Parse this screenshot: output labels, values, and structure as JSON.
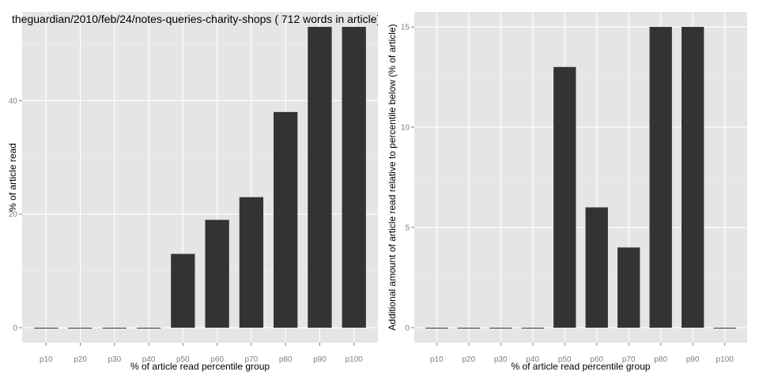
{
  "chart_data": [
    {
      "type": "bar",
      "title": "theguardian/2010/feb/24/notes-queries-charity-shops ( 712 words in article)",
      "xlabel": "% of article read percentile group",
      "ylabel": "% of article read",
      "categories": [
        "p10",
        "p20",
        "p30",
        "p40",
        "p50",
        "p60",
        "p70",
        "p80",
        "p90",
        "p100"
      ],
      "values": [
        0,
        0,
        0,
        0,
        13,
        19,
        23,
        38,
        53,
        53
      ],
      "yticks": [
        0,
        20,
        40
      ],
      "ylim": [
        -2.65,
        55.65
      ],
      "grid": true,
      "bar_color": "#333333",
      "panel_color": "#e5e5e5"
    },
    {
      "type": "bar",
      "title": "",
      "xlabel": "% of article read percentile group",
      "ylabel": "Additional amount of article read relative to percentile below (% of article)",
      "categories": [
        "p10",
        "p20",
        "p30",
        "p40",
        "p50",
        "p60",
        "p70",
        "p80",
        "p90",
        "p100"
      ],
      "values": [
        0,
        0,
        0,
        0,
        13,
        6,
        4,
        15,
        15,
        0
      ],
      "yticks": [
        0,
        5,
        10,
        15
      ],
      "ylim": [
        -0.75,
        15.75
      ],
      "grid": true,
      "bar_color": "#333333",
      "panel_color": "#e5e5e5"
    }
  ]
}
